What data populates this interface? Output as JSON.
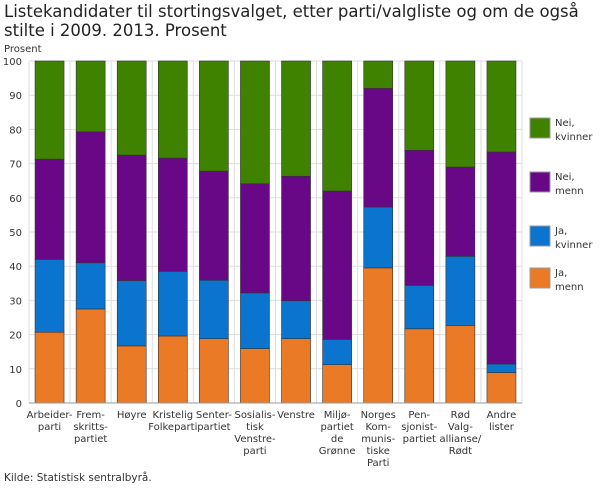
{
  "chart_data": {
    "type": "bar",
    "stacked": true,
    "title": "Listekandidater til stortingsvalget, etter parti/valgliste og om de også stilte i 2009. 2013. Prosent",
    "ylabel": "Prosent",
    "ylim": [
      0,
      100
    ],
    "yticks": [
      0,
      10,
      20,
      30,
      40,
      50,
      60,
      70,
      80,
      90,
      100
    ],
    "grid": true,
    "legend_position": "right",
    "categories": [
      "Arbeider-\nparti",
      "Frem-\nskritts-\npartiet",
      "Høyre",
      "Kristelig\nFolkeparti",
      "Senter-\npartiet",
      "Sosialis-\ntisk\nVenstre-\nparti",
      "Venstre",
      "Miljø-\npartiet\nde\nGrønne",
      "Norges\nKom-\nmunis-\ntiske\nParti",
      "Pen-\nsjonist-\npartiet",
      "Rød\nValg-\nallianse/\nRødt",
      "Andre\nlister"
    ],
    "series": [
      {
        "name": "Ja,\nmenn",
        "color": "#ea7a26",
        "values": [
          20.7,
          27.5,
          16.7,
          19.6,
          18.8,
          15.9,
          18.8,
          11.2,
          39.5,
          21.7,
          22.7,
          8.9
        ]
      },
      {
        "name": "Ja,\nkvinner",
        "color": "#0b74cf",
        "values": [
          21.3,
          13.5,
          19.1,
          18.9,
          17.1,
          16.3,
          11.1,
          7.4,
          17.8,
          12.7,
          20.2,
          2.5
        ]
      },
      {
        "name": "Nei,\nmenn",
        "color": "#690886",
        "values": [
          29.3,
          38.3,
          36.7,
          33.1,
          31.9,
          31.9,
          36.4,
          43.4,
          34.7,
          39.5,
          26.1,
          62.0
        ]
      },
      {
        "name": "Nei,\nkvinner",
        "color": "#3f8200",
        "values": [
          28.7,
          20.7,
          27.5,
          28.4,
          32.2,
          35.9,
          33.7,
          38.0,
          8.0,
          26.1,
          31.0,
          26.6
        ]
      }
    ],
    "source": "Kilde: Statistisk sentralbyrå."
  }
}
